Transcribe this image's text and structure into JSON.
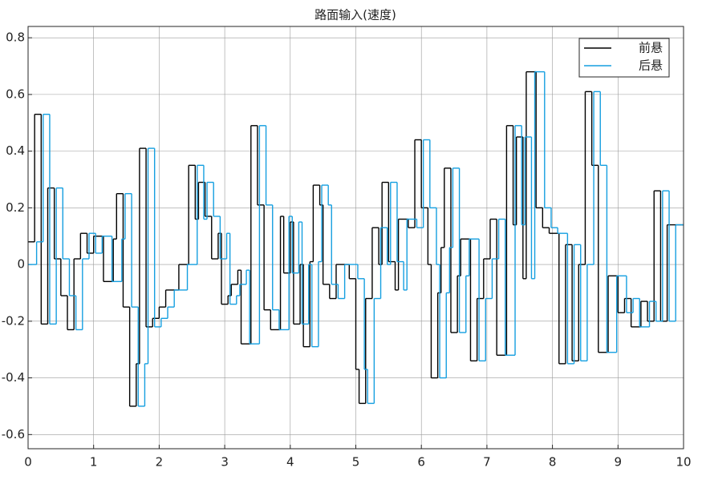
{
  "chart_data": {
    "type": "line",
    "title": "路面输入(速度)",
    "drawstyle": "steps-post",
    "xlim": [
      0,
      10
    ],
    "xticks": [
      0,
      1,
      2,
      3,
      4,
      5,
      6,
      7,
      8,
      9,
      10
    ],
    "ylim": [
      -0.65,
      0.84
    ],
    "yticks": [
      -0.6,
      -0.4,
      -0.2,
      0,
      0.2,
      0.4,
      0.6,
      0.8
    ],
    "grid": true,
    "legend": "upper right",
    "series": [
      {
        "name": "前悬",
        "color": "#000000",
        "x": [
          0,
          0.1,
          0.2,
          0.3,
          0.4,
          0.5,
          0.6,
          0.7,
          0.8,
          0.9,
          1.0,
          1.15,
          1.3,
          1.35,
          1.45,
          1.55,
          1.65,
          1.7,
          1.8,
          1.9,
          2.0,
          2.1,
          2.3,
          2.45,
          2.55,
          2.6,
          2.7,
          2.8,
          2.9,
          2.95,
          3.05,
          3.1,
          3.2,
          3.25,
          3.4,
          3.5,
          3.6,
          3.7,
          3.85,
          3.9,
          4.0,
          4.05,
          4.15,
          4.2,
          4.3,
          4.35,
          4.45,
          4.5,
          4.6,
          4.7,
          4.9,
          5.0,
          5.05,
          5.15,
          5.25,
          5.35,
          5.4,
          5.5,
          5.6,
          5.65,
          5.8,
          5.9,
          6.0,
          6.1,
          6.15,
          6.25,
          6.3,
          6.35,
          6.45,
          6.55,
          6.6,
          6.75,
          6.85,
          6.95,
          7.05,
          7.15,
          7.3,
          7.4,
          7.45,
          7.55,
          7.6,
          7.75,
          7.85,
          7.95,
          8.1,
          8.2,
          8.3,
          8.4,
          8.5,
          8.6,
          8.7,
          8.85,
          9.0,
          9.1,
          9.2,
          9.35,
          9.45,
          9.55,
          9.65,
          9.75
        ],
        "values": [
          0.08,
          0.53,
          -0.21,
          0.27,
          0.02,
          -0.11,
          -0.23,
          0.02,
          0.11,
          0.04,
          0.1,
          -0.06,
          0.09,
          0.25,
          -0.15,
          -0.5,
          -0.35,
          0.41,
          -0.22,
          -0.19,
          -0.15,
          -0.09,
          0.0,
          0.35,
          0.16,
          0.29,
          0.17,
          0.02,
          0.11,
          -0.14,
          -0.11,
          -0.07,
          -0.02,
          -0.28,
          0.49,
          0.21,
          -0.16,
          -0.23,
          0.17,
          -0.03,
          0.15,
          -0.21,
          0.0,
          -0.29,
          0.01,
          0.28,
          0.21,
          -0.07,
          -0.12,
          0.0,
          -0.05,
          -0.37,
          -0.49,
          -0.12,
          0.13,
          0.0,
          0.29,
          0.01,
          -0.09,
          0.16,
          0.13,
          0.44,
          0.2,
          0.0,
          -0.4,
          -0.1,
          0.06,
          0.34,
          -0.24,
          -0.04,
          0.09,
          -0.34,
          -0.12,
          0.02,
          0.16,
          -0.32,
          0.49,
          0.14,
          0.45,
          -0.05,
          0.68,
          0.2,
          0.13,
          0.11,
          -0.35,
          0.07,
          -0.34,
          0.0,
          0.61,
          0.35,
          -0.31,
          -0.04,
          -0.17,
          -0.12,
          -0.22,
          -0.13,
          -0.2,
          0.26,
          -0.2,
          0.14
        ]
      },
      {
        "name": "后悬",
        "color": "#159fe0",
        "x": [
          0,
          0.13,
          0.23,
          0.33,
          0.43,
          0.53,
          0.63,
          0.73,
          0.83,
          0.93,
          1.03,
          1.13,
          1.28,
          1.43,
          1.48,
          1.58,
          1.68,
          1.78,
          1.83,
          1.93,
          2.03,
          2.13,
          2.23,
          2.43,
          2.58,
          2.68,
          2.73,
          2.83,
          2.93,
          3.03,
          3.08,
          3.18,
          3.23,
          3.33,
          3.38,
          3.53,
          3.63,
          3.73,
          3.83,
          3.98,
          4.03,
          4.13,
          4.18,
          4.28,
          4.33,
          4.43,
          4.48,
          4.58,
          4.63,
          4.73,
          4.83,
          5.03,
          5.13,
          5.18,
          5.28,
          5.38,
          5.48,
          5.53,
          5.63,
          5.73,
          5.78,
          5.93,
          6.03,
          6.13,
          6.23,
          6.28,
          6.38,
          6.43,
          6.48,
          6.58,
          6.68,
          6.73,
          6.88,
          6.98,
          7.08,
          7.18,
          7.28,
          7.43,
          7.53,
          7.58,
          7.68,
          7.73,
          7.88,
          7.98,
          8.08,
          8.23,
          8.33,
          8.43,
          8.53,
          8.63,
          8.73,
          8.83,
          8.98,
          9.13,
          9.23,
          9.33,
          9.48,
          9.58,
          9.68,
          9.78,
          9.88
        ],
        "values": [
          0,
          0.08,
          0.53,
          -0.21,
          0.27,
          0.02,
          -0.11,
          -0.23,
          0.02,
          0.11,
          0.04,
          0.1,
          -0.06,
          0.09,
          0.25,
          -0.15,
          -0.5,
          -0.35,
          0.41,
          -0.22,
          -0.19,
          -0.15,
          -0.09,
          0.0,
          0.35,
          0.16,
          0.29,
          0.17,
          0.02,
          0.11,
          -0.14,
          -0.11,
          -0.07,
          -0.02,
          -0.28,
          0.49,
          0.21,
          -0.16,
          -0.23,
          0.17,
          -0.03,
          0.15,
          -0.21,
          0.0,
          -0.29,
          0.01,
          0.28,
          0.21,
          -0.07,
          -0.12,
          0.0,
          -0.05,
          -0.37,
          -0.49,
          -0.12,
          0.13,
          0.0,
          0.29,
          0.01,
          -0.09,
          0.16,
          0.13,
          0.44,
          0.2,
          0.0,
          -0.4,
          -0.1,
          0.06,
          0.34,
          -0.24,
          -0.04,
          0.09,
          -0.34,
          -0.12,
          0.02,
          0.16,
          -0.32,
          0.49,
          0.14,
          0.45,
          -0.05,
          0.68,
          0.2,
          0.13,
          0.11,
          -0.35,
          0.07,
          -0.34,
          0.0,
          0.61,
          0.35,
          -0.31,
          -0.04,
          -0.17,
          -0.12,
          -0.22,
          -0.13,
          -0.2,
          0.26,
          -0.2,
          0.14
        ]
      }
    ]
  }
}
